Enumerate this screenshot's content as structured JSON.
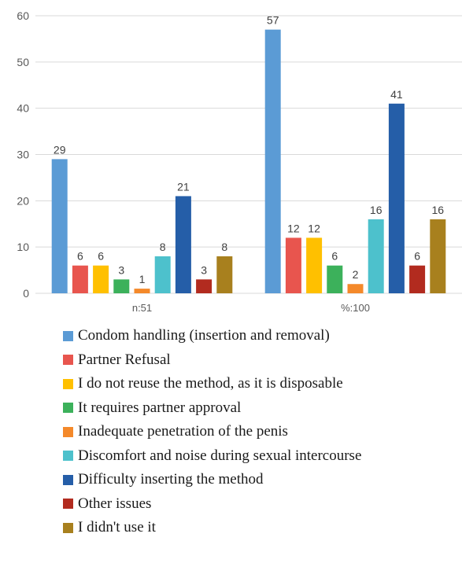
{
  "chart_data": {
    "type": "bar",
    "categories": [
      "n:51",
      "%:100"
    ],
    "ylim": [
      0,
      60
    ],
    "yticks": [
      0,
      10,
      20,
      30,
      40,
      50,
      60
    ],
    "grid": true,
    "legend_position": "bottom",
    "series": [
      {
        "name": "Condom handling (insertion and removal)",
        "color": "#5b9bd5",
        "values": [
          29,
          57
        ]
      },
      {
        "name": "Partner Refusal",
        "color": "#e8554e",
        "values": [
          6,
          12
        ]
      },
      {
        "name": "I do not reuse the method, as it is disposable",
        "color": "#ffc000",
        "values": [
          6,
          12
        ]
      },
      {
        "name": "It requires partner approval",
        "color": "#3cb15b",
        "values": [
          3,
          6
        ]
      },
      {
        "name": "Inadequate penetration of the penis",
        "color": "#f4892a",
        "values": [
          1,
          2
        ]
      },
      {
        "name": "Discomfort and noise during sexual intercourse",
        "color": "#4dc1cc",
        "values": [
          8,
          16
        ]
      },
      {
        "name": "Difficulty inserting the method",
        "color": "#255ea8",
        "values": [
          21,
          41
        ]
      },
      {
        "name": "Other issues",
        "color": "#b22b1f",
        "values": [
          3,
          6
        ]
      },
      {
        "name": "I didn't use it",
        "color": "#a8801e",
        "values": [
          8,
          16
        ]
      }
    ]
  }
}
